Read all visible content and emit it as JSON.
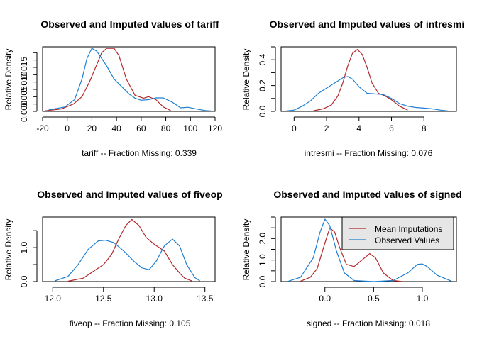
{
  "colors": {
    "imputed": "#B2272B",
    "observed": "#1F7FD0",
    "legend_bg": "#E6E6E6"
  },
  "legend": {
    "imputed_label": "Mean Imputations",
    "observed_label": "Observed Values"
  },
  "chart_data": [
    {
      "type": "line",
      "title": "Observed and Imputed values of tariff",
      "xlabel": "tariff   --  Fraction Missing: 0.339",
      "ylabel": "Relative Density",
      "xlim": [
        -20,
        120
      ],
      "ylim": [
        0,
        0.022
      ],
      "xticks": [
        "-20",
        "0",
        "20",
        "40",
        "60",
        "80",
        "100",
        "120"
      ],
      "yticks": [
        "0.000",
        "0.005",
        "0.010",
        "0.015"
      ],
      "grid": false,
      "legend": "none",
      "series": [
        {
          "name": "Mean Imputations",
          "x": [
            -18,
            -5,
            5,
            12,
            18,
            24,
            28,
            32,
            38,
            42,
            48,
            55,
            62,
            66,
            72,
            78,
            84
          ],
          "y": [
            0.0002,
            0.0008,
            0.0025,
            0.005,
            0.01,
            0.016,
            0.02,
            0.0215,
            0.0215,
            0.019,
            0.011,
            0.0055,
            0.0045,
            0.005,
            0.004,
            0.0015,
            0.0003
          ]
        },
        {
          "name": "Observed Values",
          "x": [
            -15,
            -2,
            6,
            12,
            16,
            20,
            24,
            28,
            32,
            38,
            44,
            50,
            55,
            60,
            66,
            72,
            78,
            85,
            92,
            98,
            105,
            112,
            118
          ],
          "y": [
            0.0005,
            0.0015,
            0.004,
            0.011,
            0.018,
            0.0215,
            0.0205,
            0.018,
            0.0155,
            0.011,
            0.0085,
            0.006,
            0.0045,
            0.0038,
            0.004,
            0.0046,
            0.0046,
            0.0032,
            0.0012,
            0.0014,
            0.0008,
            0.0003,
            0.0001
          ]
        }
      ]
    },
    {
      "type": "line",
      "title": "Observed and Imputed values of intresmi",
      "xlabel": "intresmi   --  Fraction Missing: 0.076",
      "ylabel": "Relative Density",
      "xlim": [
        -0.8,
        10
      ],
      "ylim": [
        0,
        0.5
      ],
      "xticks": [
        "0",
        "2",
        "4",
        "6",
        "8"
      ],
      "yticks": [
        "0.0",
        "0.2",
        "0.4"
      ],
      "grid": false,
      "legend": "none",
      "series": [
        {
          "name": "Mean Imputations",
          "x": [
            1.2,
            1.8,
            2.3,
            2.7,
            3.0,
            3.3,
            3.6,
            3.9,
            4.2,
            4.5,
            4.8,
            5.2,
            5.6,
            6.0,
            6.5,
            7.0
          ],
          "y": [
            0.005,
            0.02,
            0.05,
            0.12,
            0.22,
            0.35,
            0.45,
            0.48,
            0.44,
            0.34,
            0.22,
            0.14,
            0.12,
            0.09,
            0.04,
            0.01
          ]
        },
        {
          "name": "Observed Values",
          "x": [
            -0.5,
            0,
            0.5,
            1,
            1.5,
            2,
            2.5,
            3,
            3.3,
            3.6,
            4,
            4.5,
            5,
            5.5,
            6,
            6.5,
            7,
            7.5,
            8,
            8.5,
            9,
            9.5
          ],
          "y": [
            0.003,
            0.01,
            0.04,
            0.08,
            0.14,
            0.18,
            0.22,
            0.26,
            0.27,
            0.25,
            0.19,
            0.14,
            0.135,
            0.13,
            0.1,
            0.06,
            0.04,
            0.03,
            0.025,
            0.02,
            0.01,
            0.003
          ]
        }
      ]
    },
    {
      "type": "line",
      "title": "Observed and Imputed values of fiveop",
      "xlabel": "fiveop   --  Fraction Missing: 0.105",
      "ylabel": "Relative Density",
      "xlim": [
        11.9,
        13.6
      ],
      "ylim": [
        0,
        1.9
      ],
      "xticks": [
        "12.0",
        "12.5",
        "13.0",
        "13.5"
      ],
      "yticks": [
        "0.0",
        "1.0"
      ],
      "grid": false,
      "legend": "none",
      "series": [
        {
          "name": "Mean Imputations",
          "x": [
            12.15,
            12.3,
            12.4,
            12.5,
            12.58,
            12.65,
            12.72,
            12.78,
            12.85,
            12.92,
            13.0,
            13.1,
            13.18,
            13.25,
            13.3,
            13.37
          ],
          "y": [
            0.01,
            0.1,
            0.3,
            0.5,
            0.8,
            1.25,
            1.65,
            1.83,
            1.65,
            1.3,
            1.1,
            0.9,
            0.5,
            0.25,
            0.1,
            0.02
          ]
        },
        {
          "name": "Observed Values",
          "x": [
            12.02,
            12.15,
            12.25,
            12.35,
            12.45,
            12.52,
            12.6,
            12.7,
            12.8,
            12.88,
            12.95,
            13.02,
            13.1,
            13.18,
            13.25,
            13.32,
            13.4,
            13.45
          ],
          "y": [
            0.02,
            0.15,
            0.5,
            0.95,
            1.2,
            1.22,
            1.15,
            0.9,
            0.6,
            0.4,
            0.35,
            0.6,
            1.05,
            1.25,
            1.05,
            0.5,
            0.12,
            0.02
          ]
        }
      ]
    },
    {
      "type": "line",
      "title": "Observed and Imputed values of signed",
      "xlabel": "signed   --  Fraction Missing: 0.018",
      "ylabel": "Relative Density",
      "xlim": [
        -0.45,
        1.35
      ],
      "ylim": [
        0,
        3.0
      ],
      "xticks": [
        "0.0",
        "0.5",
        "1.0"
      ],
      "yticks": [
        "0.0",
        "1.0",
        "2.0"
      ],
      "grid": false,
      "legend": "top-right",
      "series": [
        {
          "name": "Mean Imputations",
          "x": [
            -0.25,
            -0.15,
            -0.08,
            0,
            0.05,
            0.1,
            0.15,
            0.22,
            0.3,
            0.38,
            0.46,
            0.52,
            0.6,
            0.7,
            0.8
          ],
          "y": [
            0.02,
            0.2,
            0.6,
            1.8,
            2.5,
            2.3,
            1.6,
            0.8,
            0.7,
            1.0,
            1.3,
            1.1,
            0.4,
            0.05,
            0.0
          ]
        },
        {
          "name": "Observed Values",
          "x": [
            -0.38,
            -0.25,
            -0.12,
            -0.05,
            0,
            0.05,
            0.12,
            0.2,
            0.3,
            0.5,
            0.7,
            0.85,
            0.95,
            1.0,
            1.05,
            1.15,
            1.3
          ],
          "y": [
            0.01,
            0.2,
            1.1,
            2.3,
            2.9,
            2.6,
            1.4,
            0.4,
            0.05,
            0.0,
            0.05,
            0.4,
            0.8,
            0.82,
            0.7,
            0.3,
            0.02
          ]
        }
      ]
    }
  ]
}
